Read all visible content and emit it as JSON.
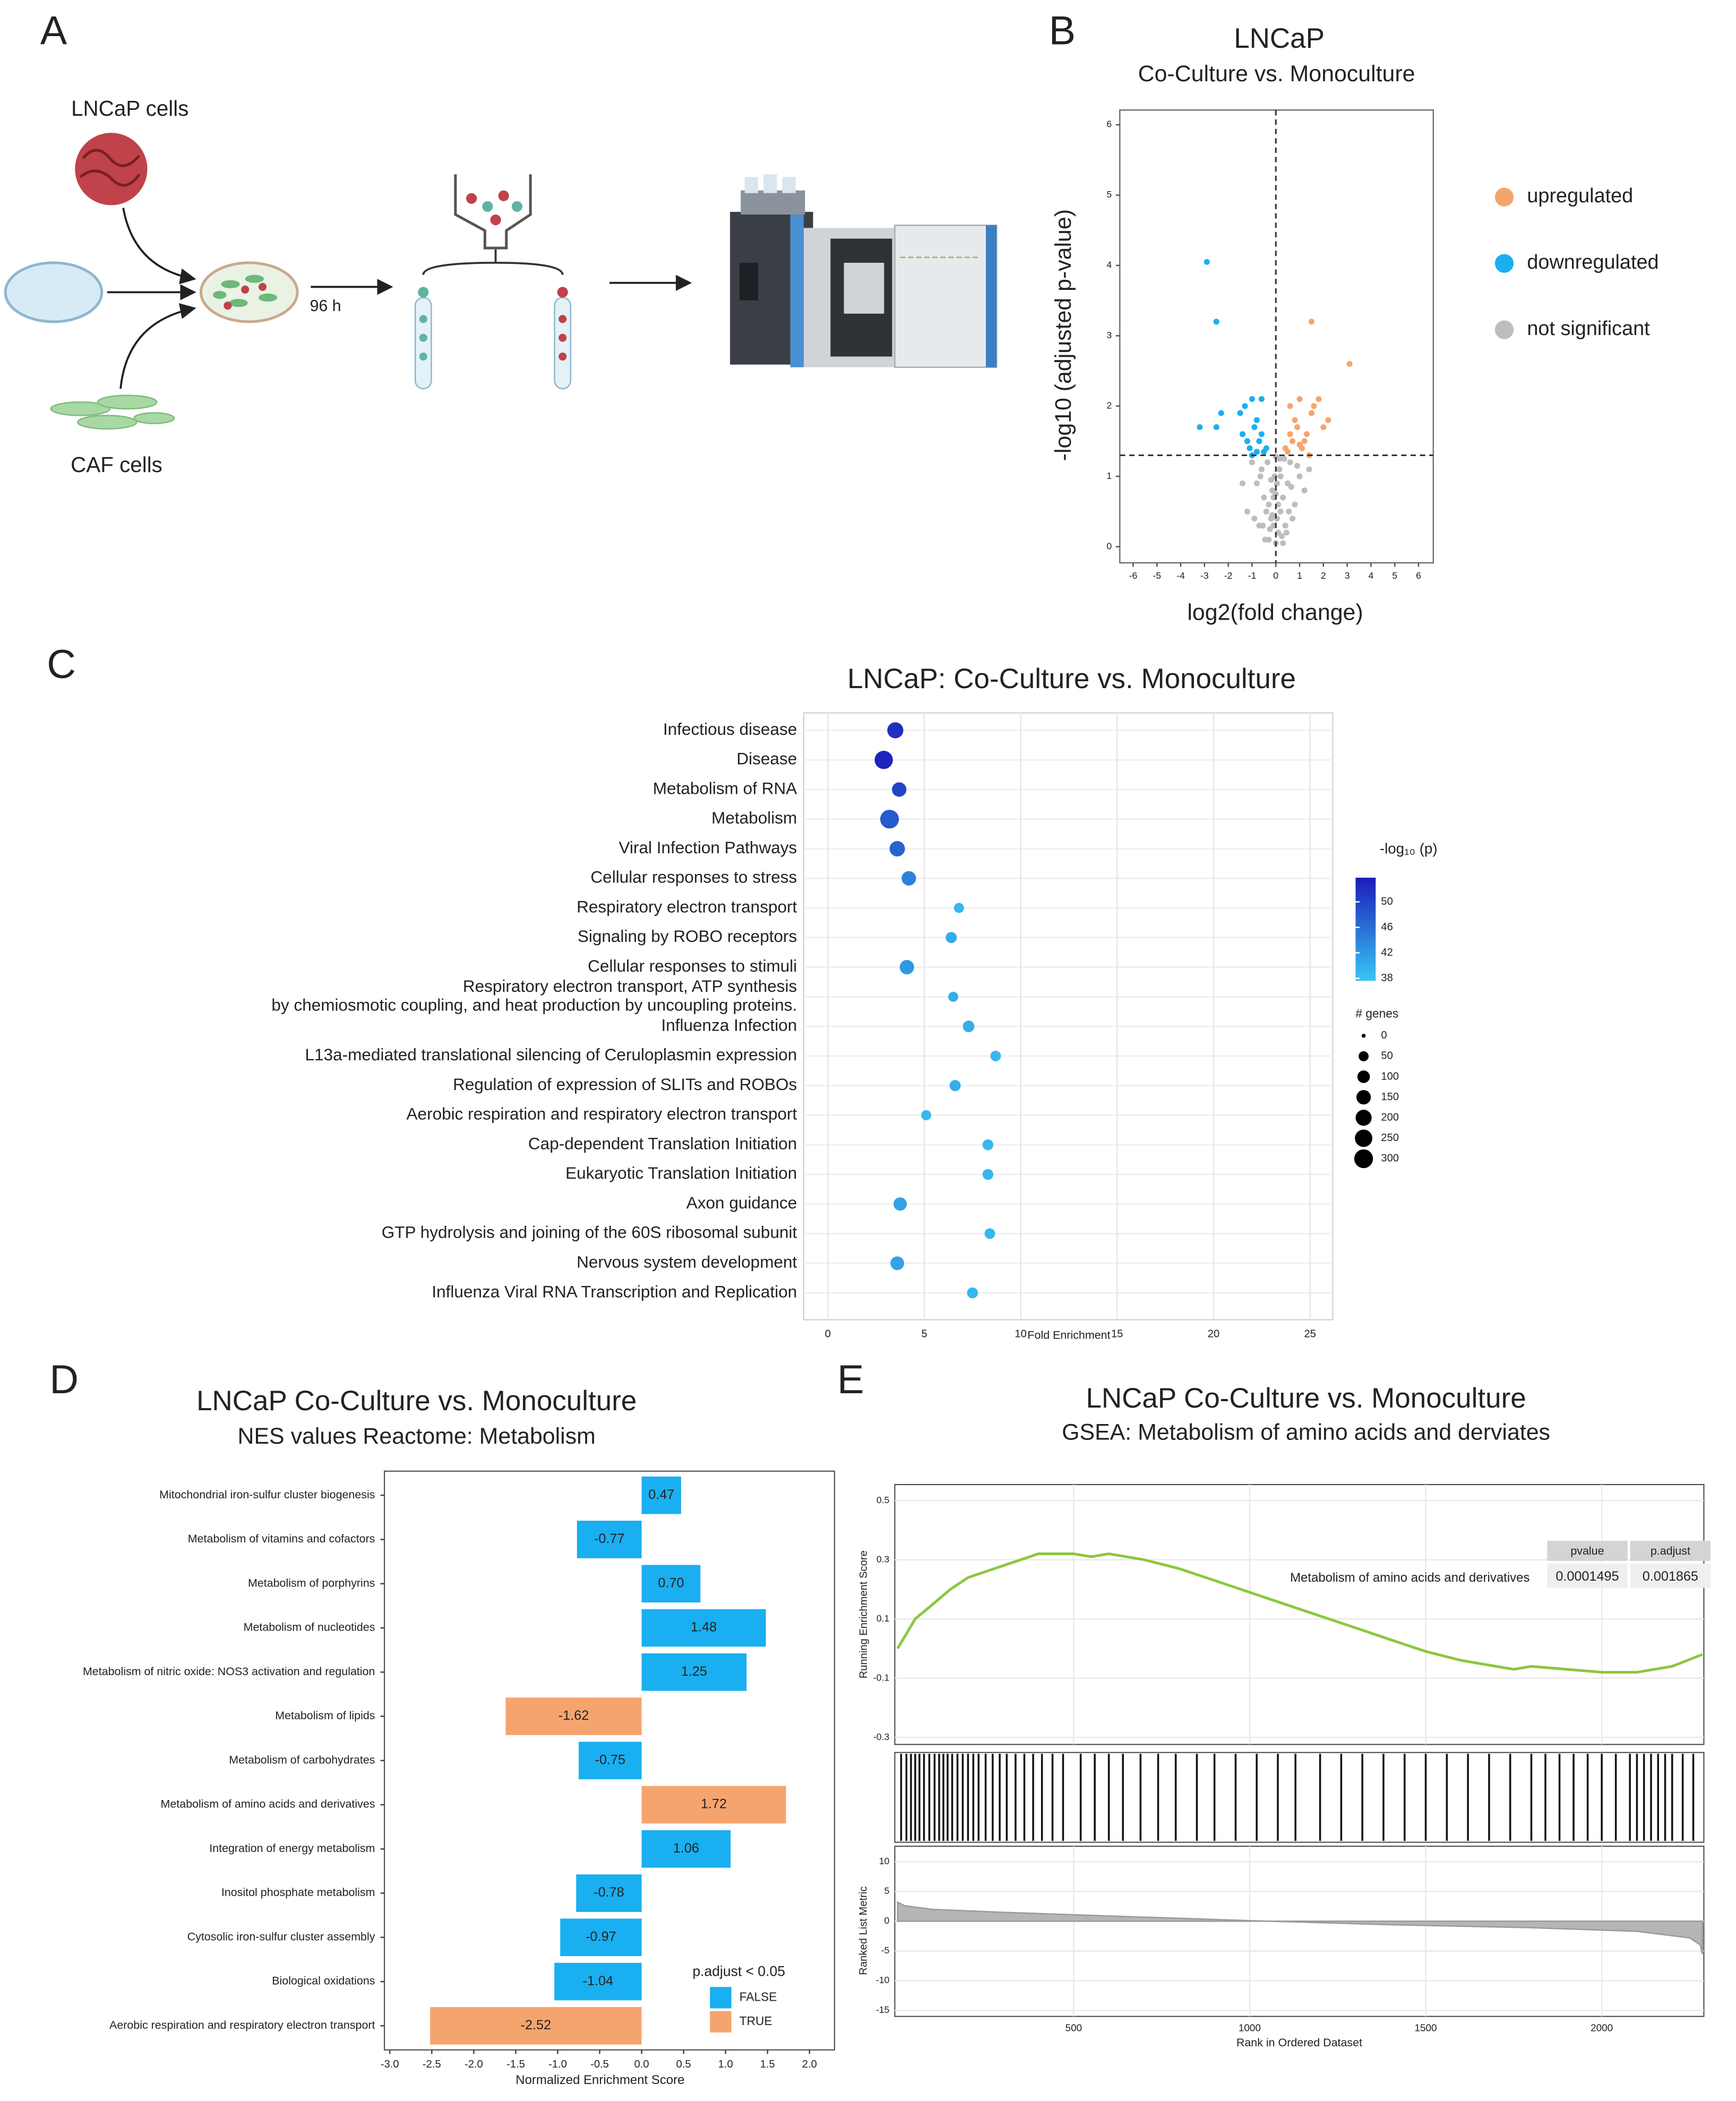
{
  "panel_labels": [
    "A",
    "B",
    "C",
    "D",
    "E"
  ],
  "diagram": {
    "cells_top": "LNCaP cells",
    "cells_bottom": "CAF cells",
    "time": "96 h"
  },
  "chart_data": [
    {
      "type": "scatter",
      "title": "LNCaP",
      "subtitle": "Co-Culture vs. Monoculture",
      "xlabel": "log2(fold change)",
      "ylabel": "-log10 (adjusted p-value)",
      "xlim": [
        -6.56,
        6.62
      ],
      "ylim": [
        -0.23,
        6.21
      ],
      "xticks": [
        -6,
        -5,
        -4,
        -3,
        -2,
        -1,
        0,
        1,
        2,
        3,
        4,
        5,
        6
      ],
      "yticks": [
        0,
        1,
        2,
        3,
        4,
        5,
        6
      ],
      "hlines": [
        1.3
      ],
      "vlines": [
        0
      ],
      "legend": "right",
      "grid": false,
      "series": [
        {
          "name": "upregulated",
          "color": "#f6a46e",
          "x": [
            0.4,
            0.6,
            0.8,
            1.0,
            1.2,
            1.5,
            1.8,
            2.0,
            0.5,
            0.7,
            0.9,
            1.1,
            1.3,
            1.6,
            2.2,
            0.6,
            1.0,
            1.4,
            1.5,
            3.1
          ],
          "values": [
            1.4,
            1.6,
            1.8,
            2.1,
            1.5,
            1.9,
            2.1,
            1.7,
            1.35,
            1.5,
            1.7,
            1.4,
            1.6,
            2.0,
            1.8,
            2.0,
            1.45,
            1.3,
            3.2,
            2.6
          ]
        },
        {
          "name": "downregulated",
          "color": "#1aaff0",
          "x": [
            -0.4,
            -0.6,
            -0.8,
            -1.0,
            -1.2,
            -1.5,
            -0.5,
            -0.7,
            -0.9,
            -1.1,
            -1.3,
            -0.6,
            -1.0,
            -1.4,
            -2.3,
            -2.5,
            -3.2,
            -2.9,
            -2.5,
            -0.8
          ],
          "values": [
            1.4,
            1.6,
            1.8,
            2.1,
            1.5,
            1.9,
            1.35,
            1.5,
            1.7,
            1.4,
            2.0,
            2.1,
            1.3,
            1.6,
            1.9,
            1.7,
            1.7,
            4.05,
            3.2,
            1.35
          ]
        },
        {
          "name": "not significant",
          "color": "#bdbdbd",
          "x": [
            0,
            0.1,
            -0.1,
            0.2,
            -0.2,
            0.3,
            -0.3,
            0.05,
            -0.05,
            0.15,
            -0.15,
            0.4,
            -0.4,
            0.5,
            -0.5,
            0.6,
            -0.6,
            0.8,
            -0.8,
            1.0,
            -1.0,
            1.2,
            -1.2,
            0.25,
            -0.25,
            0.35,
            -0.35,
            0.7,
            -0.7,
            0.1,
            -0.1,
            0.2,
            -0.2,
            0.45,
            -0.45,
            0.9,
            -0.9,
            1.4,
            -1.4,
            0.05,
            0.3,
            -0.3,
            0.55,
            -0.55,
            0.15,
            -0.15,
            0,
            0.65,
            -0.65,
            0
          ],
          "values": [
            0.05,
            0.2,
            0.3,
            0.5,
            0.4,
            0.7,
            0.6,
            0.9,
            1.0,
            1.1,
            0.8,
            0.3,
            0.5,
            0.9,
            0.7,
            1.2,
            1.1,
            0.6,
            0.9,
            1.0,
            1.2,
            0.8,
            0.5,
            0.15,
            0.25,
            1.25,
            1.2,
            0.4,
            0.3,
            0.6,
            0.7,
            1.0,
            0.95,
            0.2,
            0.1,
            1.15,
            0.4,
            1.1,
            0.9,
            0.4,
            0.05,
            0.1,
            0.5,
            0.3,
            1.25,
            0.45,
            0.75,
            0.85,
            1.0,
            1.28
          ]
        }
      ]
    },
    {
      "type": "dot",
      "title": "LNCaP: Co-Culture vs. Monoculture",
      "xlabel": "Fold Enrichment",
      "categories": [
        "Infectious disease",
        "Disease",
        "Metabolism of RNA",
        "Metabolism",
        "Viral Infection Pathways",
        "Cellular responses to stress",
        "Respiratory electron transport",
        "Signaling by ROBO receptors",
        "Cellular responses to stimuli",
        [
          "Respiratory electron transport, ATP synthesis",
          "by chemiosmotic coupling, and heat production by uncoupling proteins."
        ],
        "Influenza Infection",
        "L13a-mediated translational silencing of Ceruloplasmin expression",
        "Regulation of expression of SLITs and ROBOs",
        "Aerobic respiration and respiratory electron transport",
        "Cap-dependent Translation Initiation",
        "Eukaryotic Translation Initiation",
        "Axon guidance",
        "GTP hydrolysis and joining of the 60S ribosomal subunit",
        "Nervous system development",
        "Influenza Viral RNA Transcription and Replication"
      ],
      "values": [
        3.5,
        2.9,
        3.7,
        3.2,
        3.6,
        4.2,
        6.8,
        6.4,
        4.1,
        6.5,
        7.3,
        8.7,
        6.6,
        5.1,
        8.3,
        8.3,
        3.75,
        8.4,
        3.6,
        7.5
      ],
      "color_values": [
        52,
        53,
        50,
        48,
        47,
        44,
        39,
        40,
        42,
        40,
        40,
        39,
        40,
        39,
        39,
        39,
        41,
        39,
        41,
        39
      ],
      "size_values": [
        200,
        280,
        150,
        300,
        180,
        150,
        50,
        70,
        150,
        50,
        80,
        60,
        70,
        50,
        65,
        65,
        120,
        60,
        130,
        65
      ],
      "xlim": [
        -1.25,
        26.18
      ],
      "xticks": [
        0,
        5,
        10,
        15,
        20,
        25
      ],
      "grid": true,
      "color_label": "-log₁₀ (p)",
      "clim": [
        37.6,
        53.8
      ],
      "cticks": [
        38,
        42,
        46,
        50
      ],
      "colors": [
        "#38c6f4",
        "#1c1cb8"
      ],
      "size_label": "# genes",
      "size_ticks": [
        0,
        50,
        100,
        150,
        200,
        250,
        300
      ]
    },
    {
      "type": "barh",
      "title": "LNCaP Co-Culture vs. Monoculture",
      "subtitle": "NES values  Reactome:  Metabolism",
      "xlabel": "Normalized Enrichment Score",
      "categories": [
        "Mitochondrial iron-sulfur cluster biogenesis",
        "Metabolism of vitamins and cofactors",
        "Metabolism of porphyrins",
        "Metabolism of nucleotides",
        "Metabolism of nitric oxide: NOS3 activation and regulation",
        "Metabolism of lipids",
        "Metabolism of carbohydrates",
        "Metabolism of amino acids and derivatives",
        "Integration of energy metabolism",
        "Inositol phosphate metabolism",
        "Cytosolic iron-sulfur cluster assembly",
        "Biological oxidations",
        "Aerobic respiration and respiratory electron transport"
      ],
      "values": [
        0.47,
        -0.77,
        0.7,
        1.48,
        1.25,
        -1.62,
        -0.75,
        1.72,
        1.06,
        -0.78,
        -0.97,
        -1.04,
        -2.52
      ],
      "value_labels": [
        "0.47",
        "-0.77",
        "0.70",
        "1.48",
        "1.25",
        "-1.62",
        "-0.75",
        "1.72",
        "1.06",
        "-0.78",
        "-0.97",
        "-1.04",
        "-2.52"
      ],
      "groups": [
        "FALSE",
        "FALSE",
        "FALSE",
        "FALSE",
        "FALSE",
        "TRUE",
        "FALSE",
        "TRUE",
        "FALSE",
        "FALSE",
        "FALSE",
        "FALSE",
        "TRUE"
      ],
      "xlim": [
        -3.064,
        2.298
      ],
      "xticks": [
        {
          "value": -3,
          "label": "-3.0"
        },
        -2.5,
        {
          "value": -2,
          "label": "-2.0"
        },
        -1.5,
        {
          "value": -1,
          "label": "-1.0"
        },
        -0.5,
        {
          "value": 0,
          "label": "0.0"
        },
        0.5,
        {
          "value": 1,
          "label": "1.0"
        },
        1.5,
        {
          "value": 2,
          "label": "2.0"
        }
      ],
      "legend": {
        "title": "p.adjust < 0.05",
        "position": "bottom-right",
        "entries": [
          {
            "name": "FALSE",
            "color": "#1aaff0"
          },
          {
            "name": "TRUE",
            "color": "#f6a46e"
          }
        ]
      }
    },
    {
      "type": "gsea",
      "title": "LNCaP Co-Culture vs. Monoculture",
      "subtitle": "GSEA: Metabolism  of amino acids and derviates",
      "xlabel": "Rank in Ordered Dataset",
      "ylabel": "Running Enrichment Score",
      "y2label": "Ranked List Metric",
      "series_label": "Metabolism of amino acids and derivatives",
      "color": "#8dc63f",
      "x": [
        0,
        50,
        100,
        150,
        200,
        300,
        400,
        500,
        550,
        600,
        700,
        800,
        900,
        1000,
        1100,
        1200,
        1300,
        1400,
        1500,
        1600,
        1700,
        1750,
        1800,
        1900,
        2000,
        2100,
        2200,
        2286
      ],
      "values": [
        0.0,
        0.1,
        0.15,
        0.2,
        0.24,
        0.28,
        0.32,
        0.32,
        0.31,
        0.32,
        0.3,
        0.27,
        0.23,
        0.19,
        0.15,
        0.11,
        0.07,
        0.03,
        -0.01,
        -0.04,
        -0.06,
        -0.07,
        -0.06,
        -0.07,
        -0.08,
        -0.08,
        -0.06,
        -0.02
      ],
      "hits": [
        10,
        25,
        38,
        50,
        62,
        75,
        90,
        105,
        118,
        130,
        142,
        155,
        170,
        185,
        200,
        215,
        230,
        250,
        270,
        290,
        310,
        335,
        360,
        385,
        410,
        440,
        470,
        520,
        560,
        600,
        640,
        690,
        740,
        790,
        850,
        900,
        960,
        1020,
        1080,
        1130,
        1200,
        1260,
        1320,
        1380,
        1440,
        1500,
        1560,
        1620,
        1680,
        1740,
        1800,
        1840,
        1880,
        1920,
        1960,
        2000,
        2040,
        2080,
        2100,
        2120,
        2140,
        2160,
        2180,
        2200,
        2230,
        2260
      ],
      "metric_x": [
        0,
        20,
        100,
        300,
        600,
        1000,
        1400,
        1800,
        2100,
        2250,
        2280,
        2286
      ],
      "metric_values": [
        3.2,
        2.6,
        2.0,
        1.5,
        0.9,
        0.1,
        -0.6,
        -1.1,
        -1.7,
        -2.8,
        -4,
        -5.5
      ],
      "xlim": [
        -8,
        2290
      ],
      "xticks": [
        500,
        1000,
        1500,
        2000
      ],
      "ylim": [
        -0.324,
        0.554
      ],
      "yticks": [
        -0.3,
        -0.1,
        0.1,
        0.3,
        0.5
      ],
      "y2lim": [
        -16,
        12.6
      ],
      "y2ticks": [
        -15,
        -10,
        -5,
        0,
        5,
        10
      ],
      "table": {
        "headers": [
          "pvalue",
          "p.adjust"
        ],
        "values": [
          0.0001495,
          0.001865
        ]
      }
    }
  ]
}
